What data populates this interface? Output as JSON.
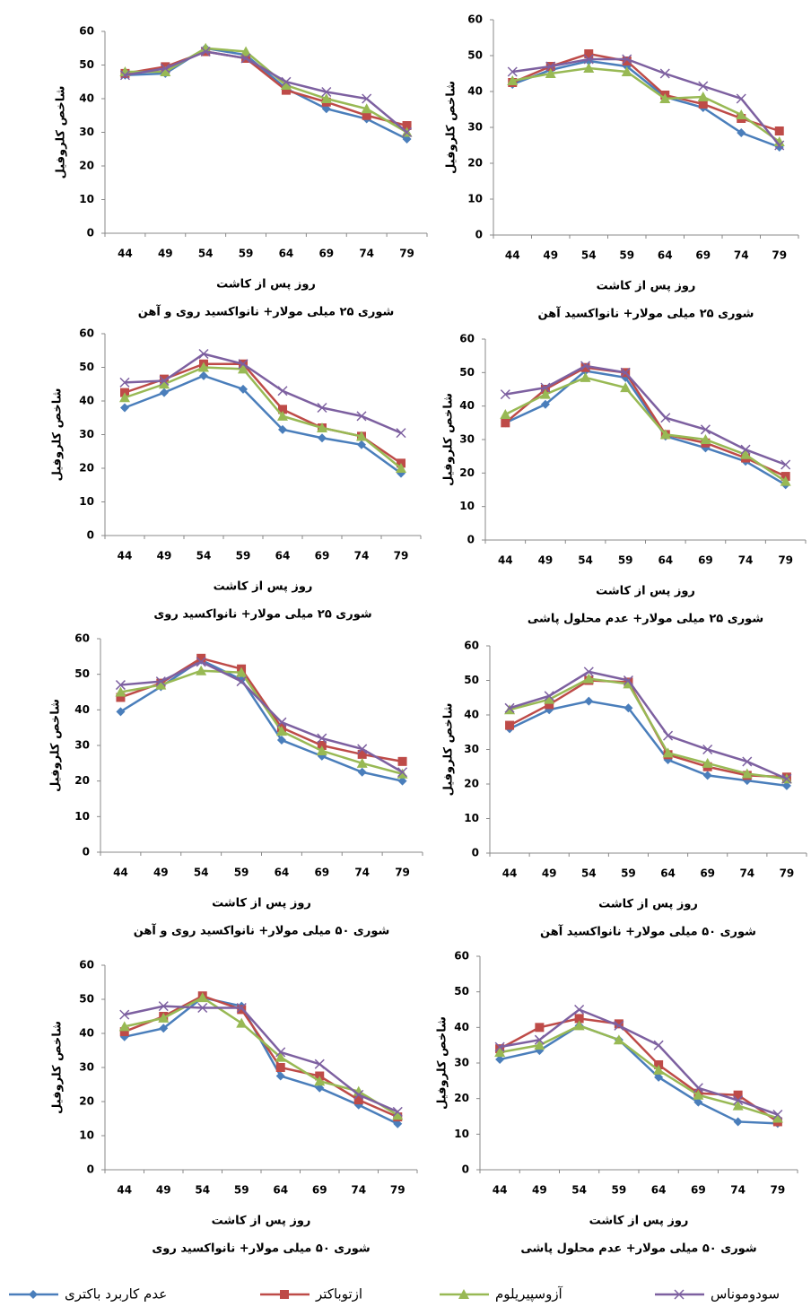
{
  "chart_data": [
    {
      "type": "line",
      "title": "شوری ۲۵ میلی مولار+ نانواکسید روی و آهن",
      "xlabel": "روز پس از کاشت",
      "ylabel": "شاخص کلروفیل",
      "categories": [
        "44",
        "49",
        "54",
        "59",
        "64",
        "69",
        "74",
        "79"
      ],
      "ylim": [
        0,
        60
      ],
      "yticks": [
        0,
        10,
        20,
        30,
        40,
        50,
        60
      ],
      "series": [
        {
          "values": [
            47,
            47.5,
            55,
            53,
            43,
            37,
            34,
            28
          ]
        },
        {
          "values": [
            47.5,
            49.5,
            54,
            52,
            42.5,
            39,
            35,
            32
          ]
        },
        {
          "values": [
            48,
            48,
            55,
            54,
            44,
            40,
            37,
            30
          ]
        },
        {
          "values": [
            47,
            49,
            54,
            52,
            45,
            42,
            40,
            30
          ]
        }
      ]
    },
    {
      "type": "line",
      "title": "شوری ۲۵ میلی مولار+ نانواکسید آهن",
      "xlabel": "روز پس از کاشت",
      "ylabel": "شاخص کلروفیل",
      "categories": [
        "44",
        "49",
        "54",
        "59",
        "64",
        "69",
        "74",
        "79"
      ],
      "ylim": [
        0,
        60
      ],
      "yticks": [
        0,
        10,
        20,
        30,
        40,
        50,
        60
      ],
      "series": [
        {
          "values": [
            42,
            46,
            48.5,
            47,
            38.5,
            35.5,
            28.5,
            24.5
          ]
        },
        {
          "values": [
            42.5,
            47,
            50.5,
            48.5,
            39,
            36.5,
            32.5,
            29
          ]
        },
        {
          "values": [
            43,
            45,
            46.5,
            45.5,
            38,
            38.5,
            33.5,
            26
          ]
        },
        {
          "values": [
            45.5,
            47,
            49,
            49,
            45,
            41.5,
            38,
            25
          ]
        }
      ]
    },
    {
      "type": "line",
      "title": "شوری ۲۵ میلی مولار+ نانواکسید روی",
      "xlabel": "روز پس از کاشت",
      "ylabel": "شاخص کلروفیل",
      "categories": [
        "44",
        "49",
        "54",
        "59",
        "64",
        "69",
        "74",
        "79"
      ],
      "ylim": [
        0,
        60
      ],
      "yticks": [
        0,
        10,
        20,
        30,
        40,
        50,
        60
      ],
      "series": [
        {
          "values": [
            38,
            42.5,
            47.5,
            43.5,
            31.5,
            29,
            27,
            18.5
          ]
        },
        {
          "values": [
            42.5,
            46.5,
            51,
            51,
            37.5,
            32,
            29.5,
            21.5
          ]
        },
        {
          "values": [
            41,
            45,
            50,
            49.5,
            35.5,
            32,
            29.5,
            20
          ]
        },
        {
          "values": [
            45.5,
            46,
            54,
            51,
            43,
            38,
            35.5,
            30.5
          ]
        }
      ]
    },
    {
      "type": "line",
      "title": "شوری ۲۵ میلی مولار+ عدم محلول پاشی",
      "xlabel": "روز پس از کاشت",
      "ylabel": "شاخص کلروفیل",
      "categories": [
        "44",
        "49",
        "54",
        "59",
        "64",
        "69",
        "74",
        "79"
      ],
      "ylim": [
        0,
        60
      ],
      "yticks": [
        0,
        10,
        20,
        30,
        40,
        50,
        60
      ],
      "series": [
        {
          "values": [
            35,
            40.5,
            50.5,
            48.5,
            31,
            27.5,
            23.5,
            16.5
          ]
        },
        {
          "values": [
            35,
            45,
            51.5,
            50,
            31.5,
            29,
            24.5,
            19
          ]
        },
        {
          "values": [
            37.5,
            43.5,
            48.5,
            45.5,
            31.5,
            30,
            25.5,
            17.5
          ]
        },
        {
          "values": [
            43.5,
            45.5,
            52,
            50,
            36.5,
            33,
            27,
            22.5
          ]
        }
      ]
    },
    {
      "type": "line",
      "title": "شوری ۵۰ میلی مولار+ نانواکسید روی و آهن",
      "xlabel": "روز پس از کاشت",
      "ylabel": "شاخص کلروفیل",
      "categories": [
        "44",
        "49",
        "54",
        "59",
        "64",
        "69",
        "74",
        "79"
      ],
      "ylim": [
        0,
        60
      ],
      "yticks": [
        0,
        10,
        20,
        30,
        40,
        50,
        60
      ],
      "series": [
        {
          "values": [
            39.5,
            46.5,
            54,
            48.5,
            31.5,
            27,
            22.5,
            20
          ]
        },
        {
          "values": [
            43.5,
            47.5,
            54.5,
            51.5,
            35,
            30,
            27.5,
            25.5
          ]
        },
        {
          "values": [
            45,
            47,
            51,
            50.5,
            34,
            28.5,
            25,
            22
          ]
        },
        {
          "values": [
            47,
            48,
            53.5,
            48,
            36.5,
            32,
            29,
            22.5
          ]
        }
      ]
    },
    {
      "type": "line",
      "title": "شوری ۵۰ میلی مولار+ نانواکسید آهن",
      "xlabel": "روز پس از کاشت",
      "ylabel": "شاخص کلروفیل",
      "categories": [
        "44",
        "49",
        "54",
        "59",
        "64",
        "69",
        "74",
        "79"
      ],
      "ylim": [
        0,
        60
      ],
      "yticks": [
        0,
        10,
        20,
        30,
        40,
        50,
        60
      ],
      "series": [
        {
          "values": [
            36,
            41.5,
            44,
            42,
            27,
            22.5,
            21,
            19.5
          ]
        },
        {
          "values": [
            37,
            43,
            50,
            49.5,
            28.5,
            25,
            22.5,
            22
          ]
        },
        {
          "values": [
            41.5,
            44.5,
            50.5,
            49,
            29,
            26,
            23,
            21.5
          ]
        },
        {
          "values": [
            42,
            45.5,
            52.5,
            50,
            34,
            30,
            26.5,
            21.5
          ]
        }
      ]
    },
    {
      "type": "line",
      "title": "شوری ۵۰ میلی مولار+ نانواکسید روی",
      "xlabel": "روز پس از کاشت",
      "ylabel": "شاخص کلروفیل",
      "categories": [
        "44",
        "49",
        "54",
        "59",
        "64",
        "69",
        "74",
        "79"
      ],
      "ylim": [
        0,
        60
      ],
      "yticks": [
        0,
        10,
        20,
        30,
        40,
        50,
        60
      ],
      "series": [
        {
          "values": [
            39,
            41.5,
            50.5,
            48,
            27.5,
            24,
            19,
            13.5
          ]
        },
        {
          "values": [
            40.5,
            45,
            51,
            47,
            30,
            27.5,
            20.5,
            15.5
          ]
        },
        {
          "values": [
            42,
            44.5,
            50.5,
            43,
            33,
            26,
            23,
            16
          ]
        },
        {
          "values": [
            45.5,
            48,
            47.5,
            47.5,
            34.5,
            31,
            22,
            17
          ]
        }
      ]
    },
    {
      "type": "line",
      "title": "شوری ۵۰ میلی مولار+ عدم محلول پاشی",
      "xlabel": "روز پس از کاشت",
      "ylabel": "شاخص کلروفیل",
      "categories": [
        "44",
        "49",
        "54",
        "59",
        "64",
        "69",
        "74",
        "79"
      ],
      "ylim": [
        0,
        60
      ],
      "yticks": [
        0,
        10,
        20,
        30,
        40,
        50,
        60
      ],
      "series": [
        {
          "values": [
            31,
            33.5,
            40.5,
            36.5,
            26,
            19,
            13.5,
            13
          ]
        },
        {
          "values": [
            34,
            40,
            42.5,
            41,
            29.5,
            21.5,
            21,
            13.5
          ]
        },
        {
          "values": [
            33,
            35,
            40.5,
            36.5,
            28,
            21,
            18,
            14.5
          ]
        },
        {
          "values": [
            34.5,
            36.5,
            45,
            40.5,
            35,
            23,
            19.5,
            15.5
          ]
        }
      ]
    }
  ],
  "legend": {
    "entries": [
      {
        "name": "عدم کاربرد باکتری",
        "color": "#4a7ebb",
        "marker": "diamond"
      },
      {
        "name": "ازتوباکتر",
        "color": "#be4b48",
        "marker": "square"
      },
      {
        "name": "آزوسپیریلوم",
        "color": "#98b954",
        "marker": "triangle"
      },
      {
        "name": "سودوموناس",
        "color": "#7d60a0",
        "marker": "x"
      }
    ]
  }
}
